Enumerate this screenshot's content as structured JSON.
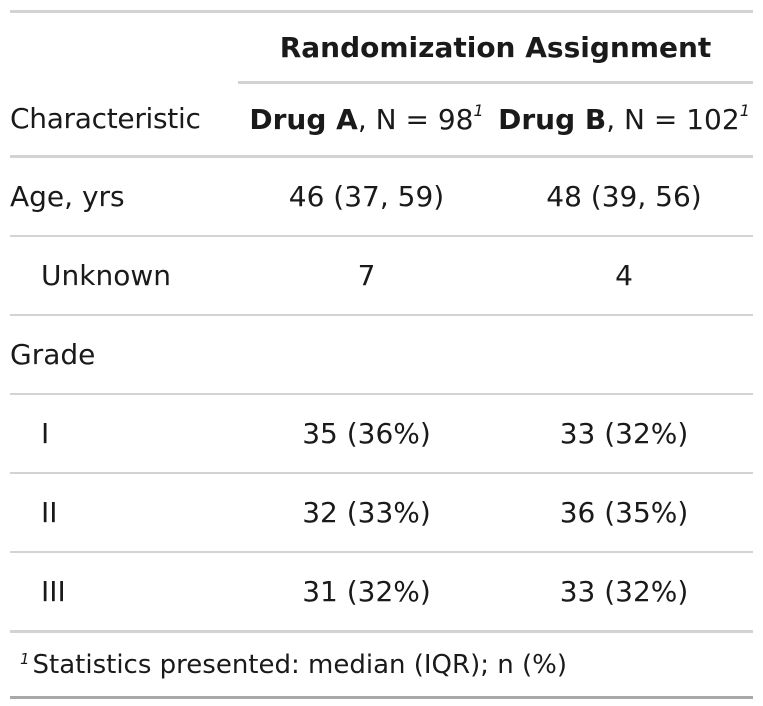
{
  "spanner": {
    "label": "Randomization Assignment"
  },
  "header": {
    "characteristic": "Characteristic",
    "groups": [
      {
        "name": "Drug A",
        "n_text": ", N = 98",
        "footnote_mark": "1"
      },
      {
        "name": "Drug B",
        "n_text": ", N = 102",
        "footnote_mark": "1"
      }
    ]
  },
  "rows": [
    {
      "label": "Age, yrs",
      "indent": false,
      "values": [
        "46 (37, 59)",
        "48 (39, 56)"
      ]
    },
    {
      "label": "Unknown",
      "indent": true,
      "values": [
        "7",
        "4"
      ]
    },
    {
      "label": "Grade",
      "indent": false,
      "values": [
        "",
        ""
      ]
    },
    {
      "label": "I",
      "indent": true,
      "values": [
        "35 (36%)",
        "33 (32%)"
      ]
    },
    {
      "label": "II",
      "indent": true,
      "values": [
        "32 (33%)",
        "36 (35%)"
      ]
    },
    {
      "label": "III",
      "indent": true,
      "values": [
        "31 (32%)",
        "33 (32%)"
      ]
    }
  ],
  "footnote": {
    "mark": "1",
    "text": "Statistics presented: median (IQR); n (%)"
  }
}
